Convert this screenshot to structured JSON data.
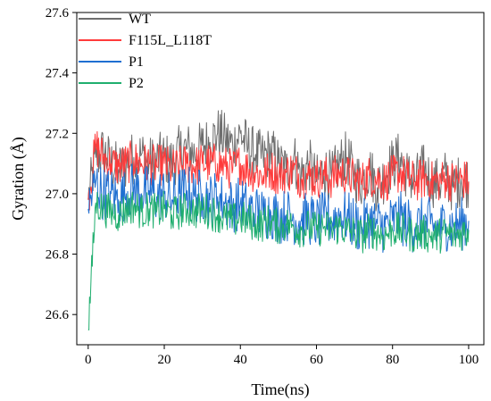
{
  "chart_data": {
    "type": "line",
    "title": "",
    "xlabel": "Time(ns)",
    "ylabel": "Gyration (Å)",
    "xlim": [
      -3,
      104
    ],
    "ylim": [
      26.5,
      27.6
    ],
    "xticks": [
      0,
      20,
      40,
      60,
      80,
      100
    ],
    "xtick_labels": [
      "0",
      "20",
      "40",
      "60",
      "80",
      "100"
    ],
    "yticks": [
      26.6,
      26.8,
      27.0,
      27.2,
      27.4,
      27.6
    ],
    "ytick_labels": [
      "26.6",
      "26.8",
      "27.0",
      "27.2",
      "27.4",
      "27.6"
    ],
    "grid": false,
    "legend_position": "top-left",
    "series": [
      {
        "name": "WT",
        "color": "#6e6e6e",
        "x": [
          0,
          2,
          4,
          6,
          8,
          10,
          12,
          14,
          16,
          18,
          20,
          22,
          24,
          26,
          28,
          30,
          32,
          34,
          36,
          38,
          40,
          42,
          44,
          46,
          48,
          50,
          52,
          54,
          56,
          58,
          60,
          62,
          64,
          66,
          68,
          70,
          72,
          74,
          76,
          78,
          80,
          82,
          84,
          86,
          88,
          90,
          92,
          94,
          96,
          98,
          100
        ],
        "y": [
          26.98,
          27.12,
          27.14,
          27.1,
          27.08,
          27.1,
          27.12,
          27.13,
          27.1,
          27.11,
          27.12,
          27.1,
          27.14,
          27.15,
          27.13,
          27.16,
          27.17,
          27.2,
          27.18,
          27.16,
          27.2,
          27.15,
          27.13,
          27.12,
          27.14,
          27.1,
          27.08,
          27.12,
          27.06,
          27.1,
          27.04,
          27.08,
          27.05,
          27.1,
          27.12,
          27.06,
          27.04,
          27.08,
          27.02,
          27.06,
          27.1,
          27.12,
          27.06,
          27.04,
          27.08,
          27.05,
          27.03,
          27.06,
          27.02,
          27.05,
          27.04
        ],
        "noise": 0.09
      },
      {
        "name": "F115L_L118T",
        "color": "#ff3b3b",
        "x": [
          0,
          2,
          4,
          6,
          8,
          10,
          12,
          14,
          16,
          18,
          20,
          22,
          24,
          26,
          28,
          30,
          32,
          34,
          36,
          38,
          40,
          42,
          44,
          46,
          48,
          50,
          52,
          54,
          56,
          58,
          60,
          62,
          64,
          66,
          68,
          70,
          72,
          74,
          76,
          78,
          80,
          82,
          84,
          86,
          88,
          90,
          92,
          94,
          96,
          98,
          100
        ],
        "y": [
          26.98,
          27.16,
          27.12,
          27.1,
          27.09,
          27.1,
          27.11,
          27.1,
          27.1,
          27.09,
          27.1,
          27.08,
          27.09,
          27.1,
          27.09,
          27.1,
          27.1,
          27.1,
          27.09,
          27.08,
          27.1,
          27.08,
          27.07,
          27.06,
          27.08,
          27.06,
          27.07,
          27.08,
          27.05,
          27.06,
          27.05,
          27.06,
          27.05,
          27.07,
          27.06,
          27.05,
          27.04,
          27.06,
          27.05,
          27.04,
          27.06,
          27.07,
          27.05,
          27.04,
          27.05,
          27.04,
          27.04,
          27.05,
          27.04,
          27.05,
          27.04
        ],
        "noise": 0.07
      },
      {
        "name": "P1",
        "color": "#1f6fd1",
        "x": [
          0,
          2,
          4,
          6,
          8,
          10,
          12,
          14,
          16,
          18,
          20,
          22,
          24,
          26,
          28,
          30,
          32,
          34,
          36,
          38,
          40,
          42,
          44,
          46,
          48,
          50,
          52,
          54,
          56,
          58,
          60,
          62,
          64,
          66,
          68,
          70,
          72,
          74,
          76,
          78,
          80,
          82,
          84,
          86,
          88,
          90,
          92,
          94,
          96,
          98,
          100
        ],
        "y": [
          26.95,
          27.04,
          27.0,
          27.0,
          26.98,
          27.0,
          27.02,
          27.0,
          27.01,
          26.99,
          27.0,
          26.98,
          27.0,
          27.01,
          26.99,
          27.0,
          26.98,
          26.99,
          26.97,
          26.96,
          26.97,
          26.95,
          26.94,
          26.93,
          26.94,
          26.92,
          26.93,
          26.92,
          26.91,
          26.92,
          26.9,
          26.92,
          26.91,
          26.93,
          26.92,
          26.9,
          26.89,
          26.91,
          26.9,
          26.89,
          26.91,
          26.92,
          26.9,
          26.89,
          26.9,
          26.9,
          26.88,
          26.9,
          26.89,
          26.9,
          26.91
        ],
        "noise": 0.09
      },
      {
        "name": "P2",
        "color": "#1fae6e",
        "x": [
          0,
          2,
          4,
          6,
          8,
          10,
          12,
          14,
          16,
          18,
          20,
          22,
          24,
          26,
          28,
          30,
          32,
          34,
          36,
          38,
          40,
          42,
          44,
          46,
          48,
          50,
          52,
          54,
          56,
          58,
          60,
          62,
          64,
          66,
          68,
          70,
          72,
          74,
          76,
          78,
          80,
          82,
          84,
          86,
          88,
          90,
          92,
          94,
          96,
          98,
          100
        ],
        "y": [
          26.55,
          26.97,
          26.95,
          26.94,
          26.93,
          26.95,
          26.96,
          26.94,
          26.95,
          26.94,
          26.95,
          26.93,
          26.94,
          26.95,
          26.94,
          26.95,
          26.94,
          26.93,
          26.92,
          26.91,
          26.92,
          26.91,
          26.9,
          26.9,
          26.91,
          26.89,
          26.9,
          26.89,
          26.88,
          26.89,
          26.88,
          26.89,
          26.88,
          26.89,
          26.88,
          26.87,
          26.86,
          26.88,
          26.87,
          26.86,
          26.88,
          26.88,
          26.87,
          26.86,
          26.87,
          26.86,
          26.86,
          26.87,
          26.86,
          26.87,
          26.88
        ],
        "noise": 0.06
      }
    ]
  }
}
